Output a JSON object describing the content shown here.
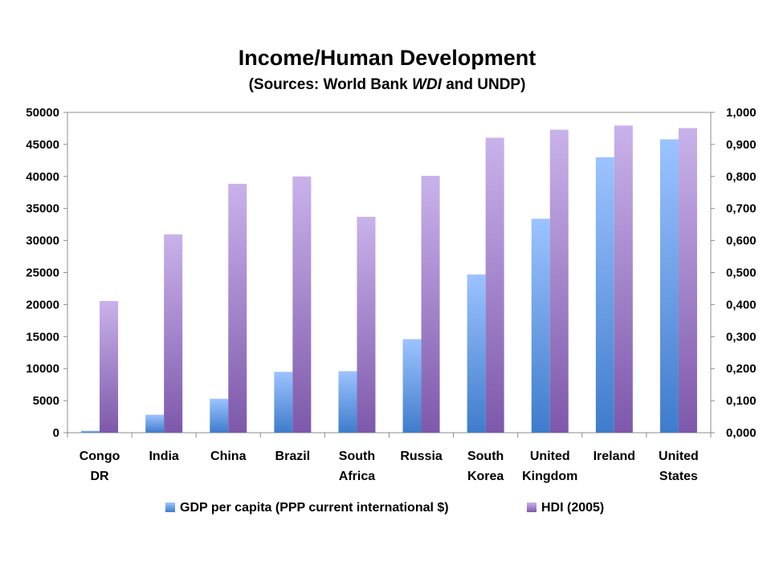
{
  "chart_data": {
    "type": "bar",
    "title": "Income/Human Development",
    "subtitle_parts": [
      "(Sources: World Bank ",
      "WDI",
      " and UNDP)"
    ],
    "categories": [
      [
        "Congo",
        "DR"
      ],
      [
        "India"
      ],
      [
        "China"
      ],
      [
        "Brazil"
      ],
      [
        "South",
        "Africa"
      ],
      [
        "Russia"
      ],
      [
        "South",
        "Korea"
      ],
      [
        "United",
        "Kingdom"
      ],
      [
        "Ireland"
      ],
      [
        "United",
        "States"
      ]
    ],
    "series": [
      {
        "name": "GDP per capita (PPP current international $)",
        "axis": "left",
        "color_top": "#9cc3ff",
        "color_bottom": "#3f7ccc",
        "values": [
          300,
          2800,
          5300,
          9500,
          9600,
          14600,
          24700,
          33400,
          43000,
          45800
        ]
      },
      {
        "name": "HDI (2005)",
        "axis": "right",
        "color_top": "#c9b2ea",
        "color_bottom": "#7e58ab",
        "values": [
          0.411,
          0.619,
          0.777,
          0.8,
          0.674,
          0.802,
          0.921,
          0.946,
          0.959,
          0.951
        ]
      }
    ],
    "y_left": {
      "min": 0,
      "max": 50000,
      "ticks": [
        "0",
        "5000",
        "10000",
        "15000",
        "20000",
        "25000",
        "30000",
        "35000",
        "40000",
        "45000",
        "50000"
      ]
    },
    "y_right": {
      "min": 0,
      "max": 1,
      "ticks": [
        "0,000",
        "0,100",
        "0,200",
        "0,300",
        "0,400",
        "0,500",
        "0,600",
        "0,700",
        "0,800",
        "0,900",
        "1,000"
      ]
    },
    "grid": false,
    "legend_position": "bottom"
  }
}
